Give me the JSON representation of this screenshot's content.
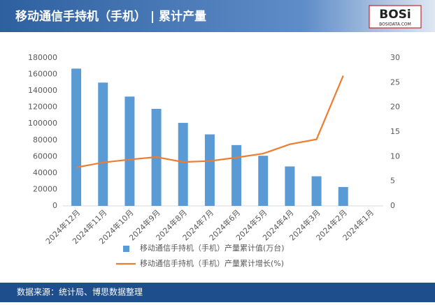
{
  "header": {
    "logo": "BOSi",
    "logo_sub": "BOSIDATA.COM"
  },
  "footer": {
    "source": "数据来源：统计局、博思数据整理"
  },
  "chart_data": {
    "type": "bar_line",
    "title": "移动通信手持机（手机） | 累计产量",
    "categories": [
      "2024年12月",
      "2024年11月",
      "2024年10月",
      "2024年9月",
      "2024年8月",
      "2024年7月",
      "2024年6月",
      "2024年5月",
      "2024年4月",
      "2024年3月",
      "2024年2月",
      "2024年1月"
    ],
    "series": [
      {
        "name": "移动通信手持机（手机）产量累计值(万台)",
        "type": "bar",
        "color": "#5b9bd5",
        "values": [
          167000,
          150000,
          133000,
          118000,
          101000,
          87000,
          74000,
          61000,
          48000,
          36000,
          23000,
          null
        ]
      },
      {
        "name": "移动通信手持机（手机）产量累计增长(%)",
        "type": "line",
        "axis": "y2",
        "color": "#ed7d31",
        "values": [
          7.8,
          8.8,
          9.4,
          9.9,
          8.9,
          9.1,
          9.8,
          10.6,
          12.5,
          13.5,
          26.4,
          null
        ]
      }
    ],
    "ylim": [
      0,
      180000
    ],
    "yticks": [
      0,
      20000,
      40000,
      60000,
      80000,
      100000,
      120000,
      140000,
      160000,
      180000
    ],
    "y2lim": [
      0,
      30
    ],
    "y2ticks": [
      0,
      5,
      10,
      15,
      20,
      25,
      30
    ],
    "grid": false,
    "legend": "bottom"
  }
}
